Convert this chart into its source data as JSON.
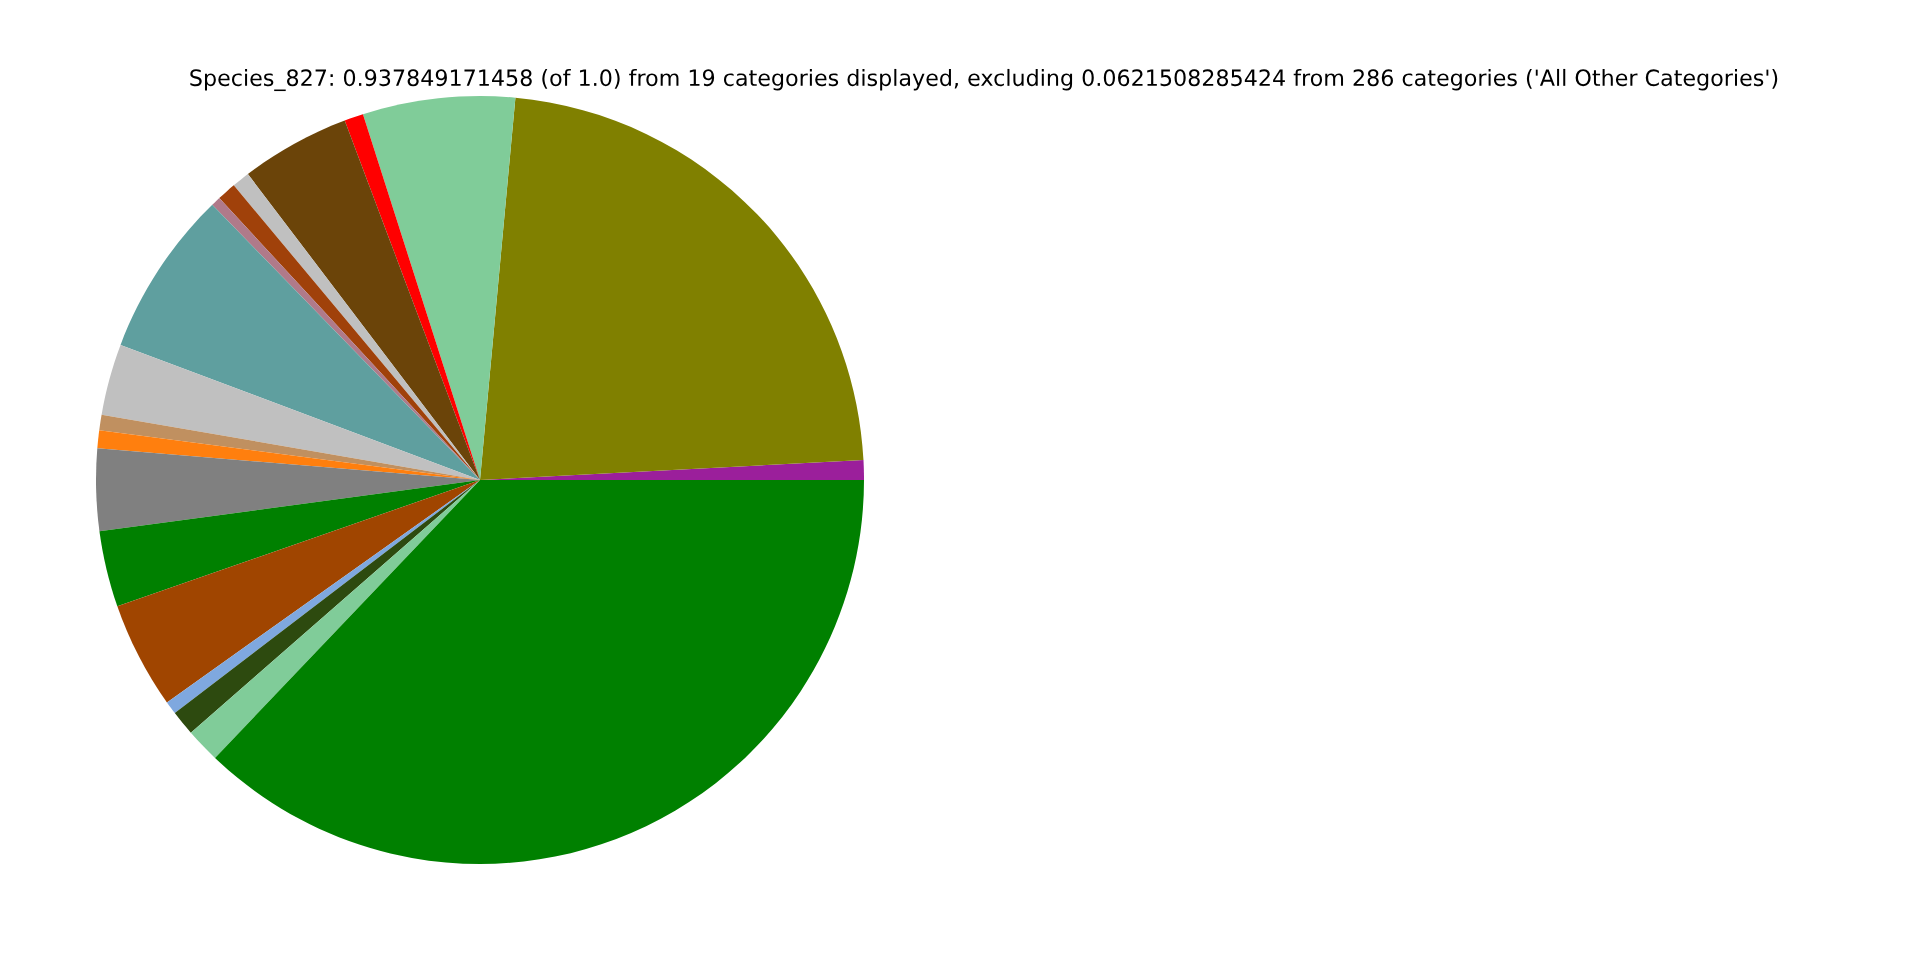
{
  "chart_data": {
    "type": "pie",
    "title": "Species_827: 0.937849171458 (of 1.0) from 19 categories displayed, excluding 0.0621508285424 from 286 categories ('All Other Categories')",
    "categories": [
      null,
      null,
      null,
      null,
      null,
      null,
      null,
      null,
      null,
      null,
      null,
      null,
      null,
      null,
      null,
      null,
      null,
      null,
      null
    ],
    "values": [
      0.83,
      22.7,
      6.4,
      0.8,
      4.6,
      0.75,
      0.8,
      0.4,
      7.0,
      3.0,
      0.65,
      0.75,
      3.45,
      3.2,
      4.5,
      0.55,
      1.05,
      1.45,
      37.12
    ],
    "colors": [
      "#9b1f9b",
      "#808000",
      "#80cc99",
      "#ff0000",
      "#6b4409",
      "#c0c0c0",
      "#a0410a",
      "#b07a8a",
      "#5f9f9f",
      "#c0c0c0",
      "#c09060",
      "#ff7f0e",
      "#808080",
      "#008000",
      "#a04500",
      "#7fa8df",
      "#2d4a0f",
      "#80cc99",
      "#008000"
    ]
  }
}
